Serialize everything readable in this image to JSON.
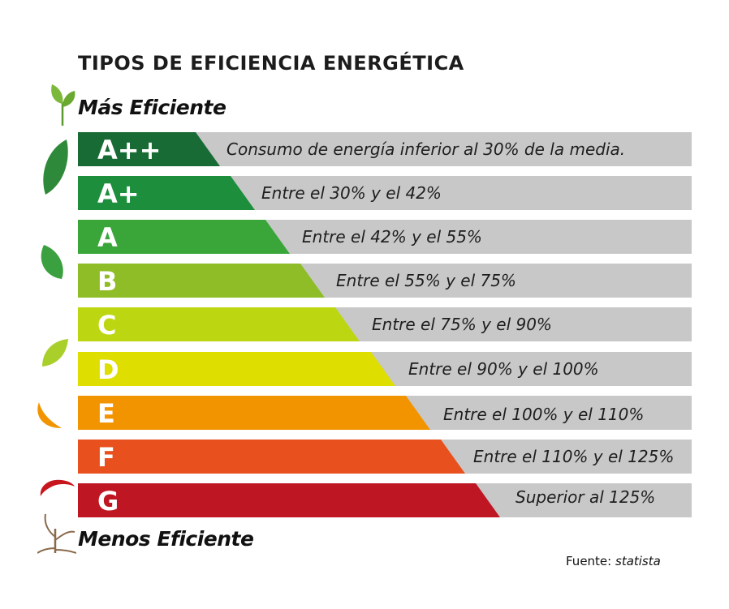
{
  "title": "TIPOS DE EFICIENCIA ENERGÉTICA",
  "top_label": "Más Eficiente",
  "bottom_label": "Menos Eficiente",
  "source": {
    "prefix": "Fuente:",
    "name": "statista"
  },
  "classes": [
    {
      "grade": "A++",
      "description": "Consumo de energía inferior al 30% de la media.",
      "color": "#186b34"
    },
    {
      "grade": "A+",
      "description": "Entre el 30% y el 42%",
      "color": "#1d8f3c"
    },
    {
      "grade": "A",
      "description": "Entre el 42% y el 55%",
      "color": "#3aa63a"
    },
    {
      "grade": "B",
      "description": "Entre el 55% y el 75%",
      "color": "#8ebd27"
    },
    {
      "grade": "C",
      "description": "Entre el 75% y el 90%",
      "color": "#bcd712"
    },
    {
      "grade": "D",
      "description": "Entre el 90% y el 100%",
      "color": "#dede00"
    },
    {
      "grade": "E",
      "description": "Entre el 100% y el 110%",
      "color": "#f29400"
    },
    {
      "grade": "F",
      "description": "Entre el 110% y el 125%",
      "color": "#e8501d"
    },
    {
      "grade": "G",
      "description": "Superior al  125%",
      "color": "#be1622"
    }
  ],
  "icons": {
    "top": "sprout-icon",
    "bottom": "wilted-sprout-icon",
    "leaves": [
      "dark-green-leaf-icon",
      "green-leaf-icon",
      "light-green-leaf-icon",
      "orange-leaf-icon",
      "red-leaf-icon"
    ]
  }
}
